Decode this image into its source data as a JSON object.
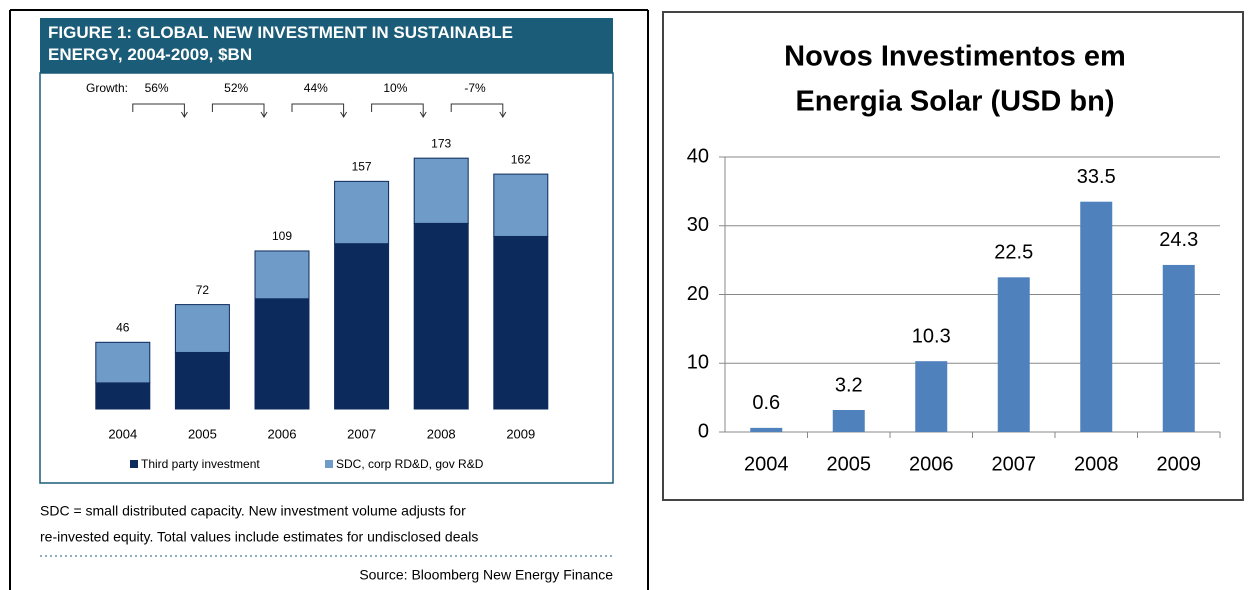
{
  "chart_data": [
    {
      "type": "stacked_bar",
      "title": "FIGURE 1: GLOBAL NEW INVESTMENT IN SUSTAINABLE ENERGY, 2004-2009, $BN",
      "categories": [
        "2004",
        "2005",
        "2006",
        "2007",
        "2008",
        "2009"
      ],
      "series": [
        {
          "name": "Third party investment",
          "color": "#0d2a5c",
          "values": [
            18,
            39,
            76,
            114,
            128,
            119
          ]
        },
        {
          "name": "SDC, corp RD&D, gov R&D",
          "color": "#6f9bc9",
          "values": [
            28,
            33,
            33,
            43,
            45,
            43
          ]
        }
      ],
      "totals": [
        46,
        72,
        109,
        157,
        173,
        162
      ],
      "growth_label": "Growth:",
      "growth": [
        56,
        52,
        44,
        10,
        -7
      ],
      "growth_labels": [
        "56%",
        "52%",
        "44%",
        "10%",
        "-7%"
      ],
      "ylim": [
        0,
        180
      ],
      "notes": [
        "SDC = small distributed capacity.  New investment volume adjusts for",
        "re-invested equity.  Total values include estimates for undisclosed deals"
      ],
      "source": "Source: Bloomberg New Energy Finance"
    },
    {
      "type": "bar",
      "title": [
        "Novos Investimentos em",
        "Energia Solar (USD bn)"
      ],
      "categories": [
        "2004",
        "2005",
        "2006",
        "2007",
        "2008",
        "2009"
      ],
      "values": [
        0.6,
        3.2,
        10.3,
        22.5,
        33.5,
        24.3
      ],
      "color": "#4f81bd",
      "ylim": [
        0,
        40
      ],
      "yticks": [
        0,
        10,
        20,
        30,
        40
      ],
      "grid": true
    }
  ]
}
